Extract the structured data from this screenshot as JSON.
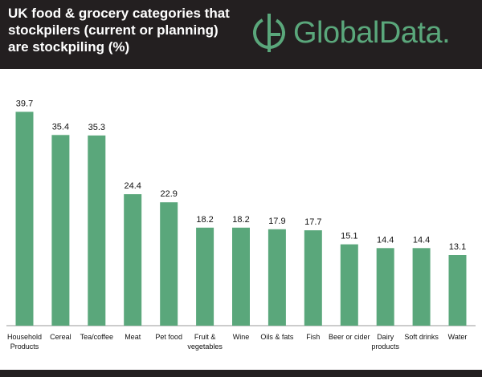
{
  "header": {
    "title_lines": [
      "UK food & grocery categories that",
      "stockpilers (current or planning)",
      "are stockpiling (%)"
    ],
    "logo_text": "GlobalData."
  },
  "colors": {
    "bar": "#5aa77b",
    "header_bg": "#231f20",
    "logo": "#5aa77b"
  },
  "chart_data": {
    "type": "bar",
    "title": "UK food & grocery categories that stockpilers (current or planning) are stockpiling (%)",
    "xlabel": "",
    "ylabel": "",
    "ylim": [
      0,
      42
    ],
    "categories": [
      [
        "Household",
        "Products"
      ],
      [
        "Cereal"
      ],
      [
        "Tea/coffee"
      ],
      [
        "Meat"
      ],
      [
        "Pet food"
      ],
      [
        "Fruit &",
        "vegetables"
      ],
      [
        "Wine"
      ],
      [
        "Oils & fats"
      ],
      [
        "Fish"
      ],
      [
        "Beer or cider"
      ],
      [
        "Dairy",
        "products"
      ],
      [
        "Soft drinks"
      ],
      [
        "Water"
      ]
    ],
    "values": [
      39.7,
      35.4,
      35.3,
      24.4,
      22.9,
      18.2,
      18.2,
      17.9,
      17.7,
      15.1,
      14.4,
      14.4,
      13.1
    ],
    "value_labels": [
      "39.7",
      "35.4",
      "35.3",
      "24.4",
      "22.9",
      "18.2",
      "18.2",
      "17.9",
      "17.7",
      "15.1",
      "14.4",
      "14.4",
      "13.1"
    ]
  }
}
